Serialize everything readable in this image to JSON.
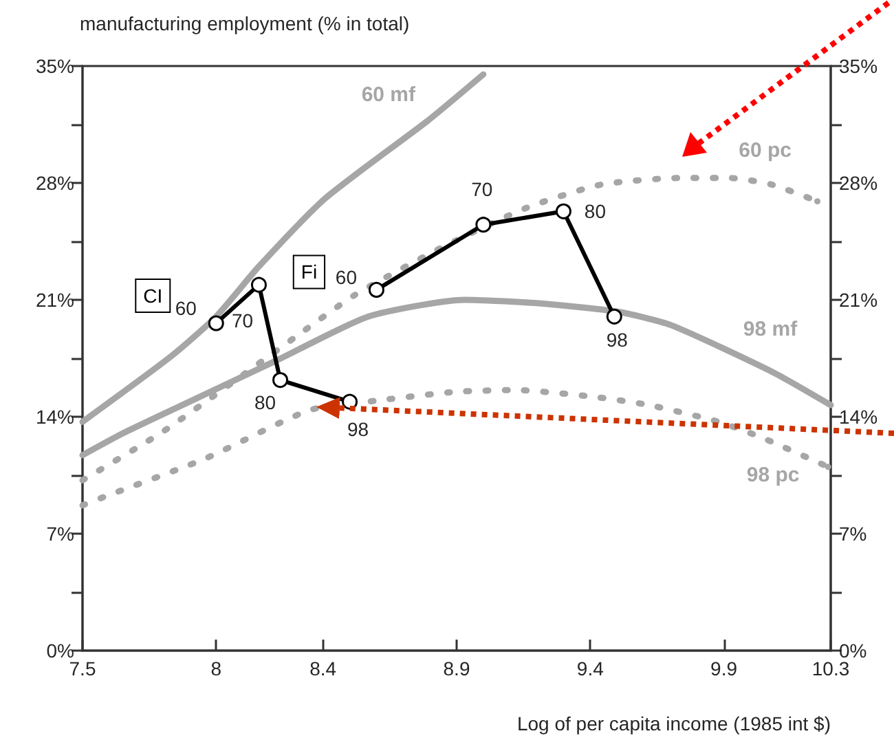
{
  "chart_data": {
    "type": "line",
    "ylabel": "manufacturing employment (% in total)",
    "xlabel": "Log of per capita income (1985 int $)",
    "xlim": [
      7.5,
      10.3
    ],
    "xticks": [
      7.5,
      8,
      8.4,
      8.9,
      9.4,
      9.9,
      10.3
    ],
    "ylim": [
      0,
      35
    ],
    "yticks": [
      {
        "value": 0,
        "label": "0%"
      },
      {
        "value": 3.5,
        "label": null
      },
      {
        "value": 7,
        "label": "7%"
      },
      {
        "value": 10.5,
        "label": null
      },
      {
        "value": 14,
        "label": "14%"
      },
      {
        "value": 17.5,
        "label": null
      },
      {
        "value": 21,
        "label": "21%"
      },
      {
        "value": 24.5,
        "label": null
      },
      {
        "value": 28,
        "label": "28%"
      },
      {
        "value": 31.5,
        "label": null
      },
      {
        "value": 35,
        "label": "35%"
      }
    ],
    "y2lim": [
      0,
      35
    ],
    "y2ticks": [
      {
        "value": 0,
        "label": "0%"
      },
      {
        "value": 3.5,
        "label": null
      },
      {
        "value": 7,
        "label": "7%"
      },
      {
        "value": 10.5,
        "label": null
      },
      {
        "value": 14,
        "label": "14%"
      },
      {
        "value": 17.5,
        "label": null
      },
      {
        "value": 21,
        "label": "21%"
      },
      {
        "value": 24.5,
        "label": null
      },
      {
        "value": 28,
        "label": "28%"
      },
      {
        "value": 31.5,
        "label": null
      },
      {
        "value": 35,
        "label": "35%"
      }
    ],
    "series": [
      {
        "name": "60 mf",
        "color": "#a6a6a6",
        "line_style": "solid",
        "x": [
          7.5,
          7.83,
          8.0,
          8.16,
          8.41,
          8.79,
          9.0
        ],
        "values": [
          13.7,
          17.6,
          20.0,
          23.0,
          27.1,
          31.7,
          34.5
        ]
      },
      {
        "name": "60 pc",
        "color": "#a6a6a6",
        "line_style": "dotted",
        "x": [
          7.5,
          7.8,
          8.1,
          8.29,
          8.52,
          8.84,
          9.16,
          9.44,
          9.74,
          9.92,
          10.08,
          10.25
        ],
        "values": [
          10.2,
          13.1,
          16.5,
          18.7,
          21.3,
          24.1,
          26.5,
          27.9,
          28.3,
          28.3,
          27.9,
          26.9
        ]
      },
      {
        "name": "98 mf",
        "color": "#a6a6a6",
        "line_style": "solid",
        "x": [
          7.5,
          7.65,
          7.9,
          8.23,
          8.57,
          8.93,
          9.2,
          9.5,
          9.7,
          10.08,
          10.3
        ],
        "values": [
          11.7,
          13.0,
          14.9,
          17.4,
          20.0,
          21.0,
          20.8,
          20.3,
          19.5,
          16.7,
          14.7
        ]
      },
      {
        "name": "98 pc",
        "color": "#a6a6a6",
        "line_style": "dotted",
        "x": [
          7.5,
          7.58,
          7.96,
          8.35,
          8.62,
          8.9,
          9.12,
          9.41,
          9.62,
          9.88,
          10.05,
          10.29
        ],
        "values": [
          8.7,
          9.2,
          11.5,
          14.4,
          15.0,
          15.5,
          15.6,
          15.2,
          14.7,
          13.7,
          12.7,
          11.0
        ]
      },
      {
        "name": "CI",
        "color": "#000000",
        "line_style": "solid",
        "marker": "circle",
        "x": [
          8.0,
          8.16,
          8.24,
          8.5
        ],
        "values": [
          19.6,
          21.9,
          16.2,
          14.9
        ]
      },
      {
        "name": "Fi",
        "color": "#000000",
        "line_style": "solid",
        "marker": "circle",
        "x": [
          8.6,
          9.0,
          9.3,
          9.49
        ],
        "values": [
          21.6,
          25.5,
          26.3,
          20.0
        ]
      }
    ],
    "annotations": [
      {
        "text": "60",
        "x": 8.0,
        "y": 19.6
      },
      {
        "text": "70",
        "x": 8.16,
        "y": 21.9
      },
      {
        "text": "80",
        "x": 8.24,
        "y": 16.2
      },
      {
        "text": "98",
        "x": 8.5,
        "y": 14.9
      },
      {
        "text": "60",
        "x": 8.6,
        "y": 21.6
      },
      {
        "text": "70",
        "x": 9.0,
        "y": 25.5
      },
      {
        "text": "80",
        "x": 9.3,
        "y": 26.3
      },
      {
        "text": "98",
        "x": 9.49,
        "y": 20.0
      }
    ]
  }
}
